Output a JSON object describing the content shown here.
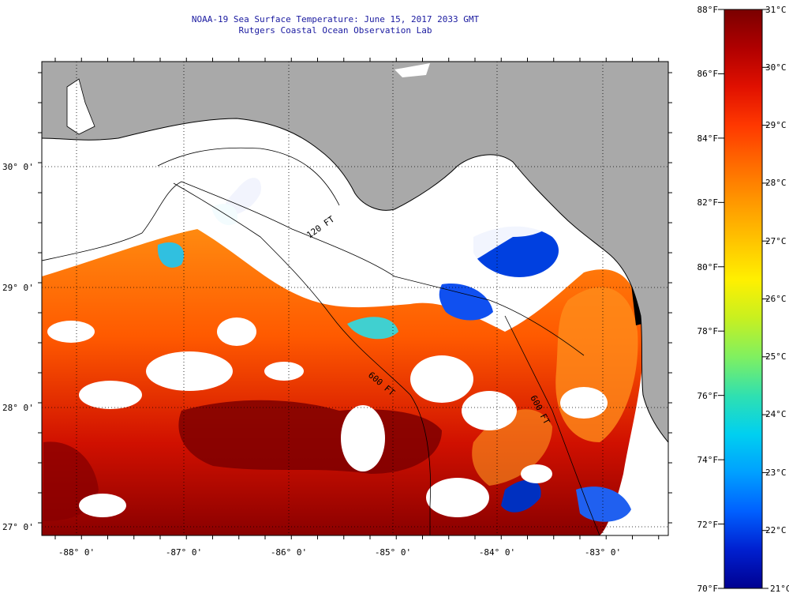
{
  "title": {
    "line1": "NOAA-19 Sea Surface Temperature:  June 15, 2017 2033 GMT",
    "line2": "Rutgers Coastal Ocean Observation Lab"
  },
  "map": {
    "lat_labels": [
      "30° 0'",
      "29° 0'",
      "28° 0'",
      "27° 0'"
    ],
    "lon_labels": [
      "-88° 0'",
      "-87° 0'",
      "-86° 0'",
      "-85° 0'",
      "-84° 0'",
      "-83° 0'"
    ],
    "contour_labels": [
      "120 FT",
      "600 FT",
      "600 FT"
    ],
    "colors": {
      "land": "#a9a9a9",
      "cloud": "#ffffff",
      "frame": "#000000"
    }
  },
  "colorbar": {
    "fahrenheit_labels": [
      "88°F",
      "86°F",
      "84°F",
      "82°F",
      "80°F",
      "78°F",
      "76°F",
      "74°F",
      "72°F",
      "70°F"
    ],
    "celsius_labels": [
      "31°C",
      "30°C",
      "29°C",
      "28°C",
      "27°C",
      "26°C",
      "25°C",
      "24°C",
      "23°C",
      "22°C",
      "21°C"
    ],
    "stops": [
      "#7a0000",
      "#b00000",
      "#e01000",
      "#ff3800",
      "#ff6a00",
      "#ff9800",
      "#ffc400",
      "#fff000",
      "#c8f020",
      "#80f060",
      "#30e0b0",
      "#00d0f0",
      "#00a0ff",
      "#0060ff",
      "#0020d0",
      "#000090"
    ]
  }
}
